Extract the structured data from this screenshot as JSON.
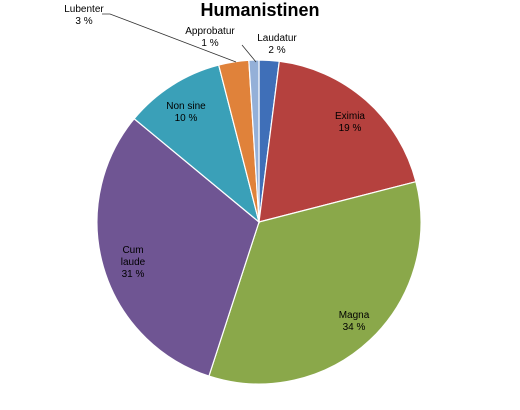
{
  "chart_data": {
    "type": "pie",
    "title": "Humanistinen",
    "start_angle_deg": 0,
    "direction": "clockwise",
    "slices": [
      {
        "name": "Laudatur",
        "value": 2,
        "label_lines": [
          "Laudatur",
          "2 %"
        ],
        "color": "#3f6fb8"
      },
      {
        "name": "Eximia",
        "value": 19,
        "label_lines": [
          "Eximia",
          "19 %"
        ],
        "color": "#b5413e"
      },
      {
        "name": "Magna",
        "value": 34,
        "label_lines": [
          "Magna",
          "34 %"
        ],
        "color": "#8aa84a"
      },
      {
        "name": "Cum laude",
        "value": 31,
        "label_lines": [
          "Cum",
          "laude",
          "31 %"
        ],
        "color": "#6f5593"
      },
      {
        "name": "Non sine",
        "value": 10,
        "label_lines": [
          "Non sine",
          "10 %"
        ],
        "color": "#3aa0b8"
      },
      {
        "name": "Lubenter",
        "value": 3,
        "label_lines": [
          "Lubenter",
          "3 %"
        ],
        "color": "#e0823a"
      },
      {
        "name": "Approbatur",
        "value": 1,
        "label_lines": [
          "Approbatur",
          "1 %"
        ],
        "color": "#94b0d8"
      }
    ]
  }
}
